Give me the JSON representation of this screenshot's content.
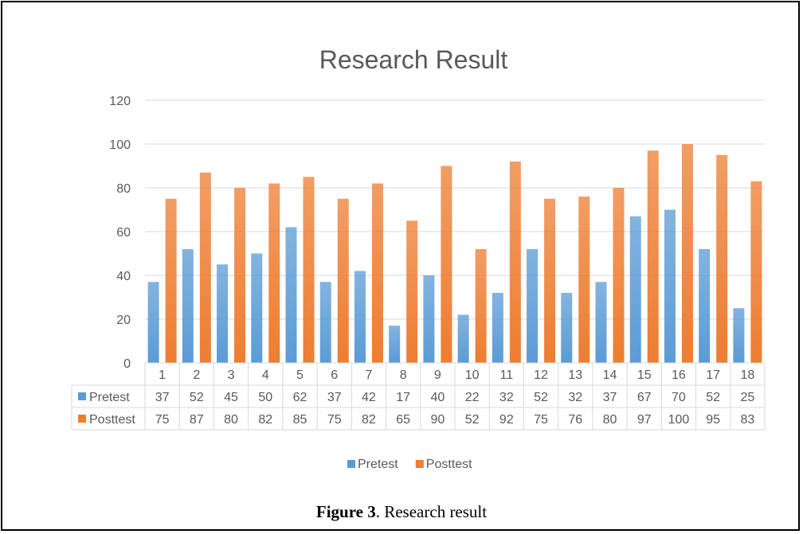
{
  "chart_data": {
    "type": "bar",
    "title": "Research Result",
    "categories": [
      "1",
      "2",
      "3",
      "4",
      "5",
      "6",
      "7",
      "8",
      "9",
      "10",
      "11",
      "12",
      "13",
      "14",
      "15",
      "16",
      "17",
      "18"
    ],
    "series": [
      {
        "name": "Pretest",
        "color": "#5B9BD5",
        "values": [
          37,
          52,
          45,
          50,
          62,
          37,
          42,
          17,
          40,
          22,
          32,
          52,
          32,
          37,
          67,
          70,
          52,
          25
        ]
      },
      {
        "name": "Posttest",
        "color": "#ED7D31",
        "values": [
          75,
          87,
          80,
          82,
          85,
          75,
          82,
          65,
          90,
          52,
          92,
          75,
          76,
          80,
          97,
          100,
          95,
          83
        ]
      }
    ],
    "ylim": [
      0,
      120
    ],
    "yticks": [
      0,
      20,
      40,
      60,
      80,
      100,
      120
    ],
    "grid": true,
    "data_table": true,
    "legend": "bottom"
  },
  "caption": {
    "label": "Figure 3",
    "text": ". Research result"
  }
}
